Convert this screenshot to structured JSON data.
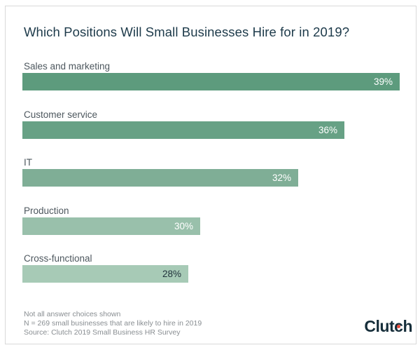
{
  "title": "Which Positions Will Small Businesses Hire for in 2019?",
  "chart_data": {
    "type": "bar",
    "orientation": "horizontal",
    "title": "Which Positions Will Small Businesses Hire for in 2019?",
    "categories": [
      "Sales and marketing",
      "Customer service",
      "IT",
      "Production",
      "Cross-functional"
    ],
    "values": [
      39,
      36,
      32,
      30,
      28
    ],
    "value_labels": [
      "39%",
      "36%",
      "32%",
      "30%",
      "28%"
    ],
    "bar_colors": [
      "#5d9b7d",
      "#67a185",
      "#7fae96",
      "#99c0ab",
      "#a7cab6"
    ],
    "value_label_colors": [
      "#ffffff",
      "#ffffff",
      "#ffffff",
      "#ffffff",
      "#21333c"
    ],
    "bar_pixel_widths": [
      539,
      460,
      394,
      254,
      237
    ],
    "xlabel": "",
    "ylabel": "",
    "grid": false,
    "legend": false,
    "value_label_position": "inside-end"
  },
  "footnotes": [
    "Not all answer choices shown",
    "N = 269 small businesses that are likely to hire in 2019",
    "Source: Clutch 2019 Small Business HR Survey"
  ],
  "brand": {
    "name": "Clutch",
    "parts": [
      "Clut",
      "c",
      "h"
    ]
  },
  "colors": {
    "background": "#ffffff",
    "border": "#d9d9d9",
    "title": "#1d3a4a",
    "category_label": "#4d575e",
    "footnote": "#898e92",
    "brand_navy": "#162e3a",
    "brand_dot": "#e8493a"
  }
}
